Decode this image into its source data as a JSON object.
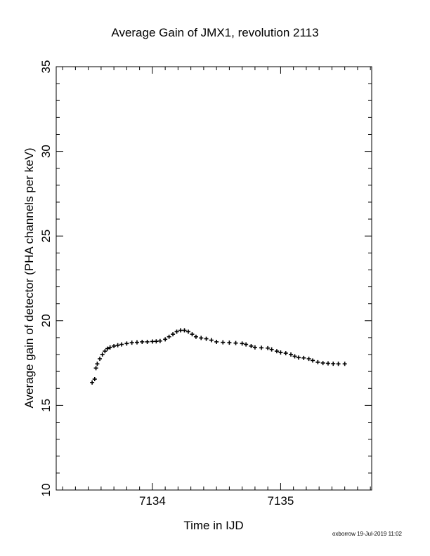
{
  "chart_data": {
    "type": "scatter",
    "title": "Average Gain of JMX1, revolution 2113",
    "xlabel": "Time in IJD",
    "ylabel": "Average gain of detector (PHA channels per keV)",
    "xlim": [
      7133.25,
      7135.71
    ],
    "ylim": [
      10,
      35
    ],
    "xticks": [
      7134,
      7135
    ],
    "yticks": [
      10,
      15,
      20,
      25,
      30,
      35
    ],
    "grid": false,
    "marker": "plus",
    "color": "#000000",
    "points": [
      [
        7133.53,
        16.35
      ],
      [
        7133.55,
        16.55
      ],
      [
        7133.56,
        17.2
      ],
      [
        7133.57,
        17.45
      ],
      [
        7133.59,
        17.75
      ],
      [
        7133.61,
        18.0
      ],
      [
        7133.63,
        18.2
      ],
      [
        7133.65,
        18.35
      ],
      [
        7133.67,
        18.42
      ],
      [
        7133.7,
        18.5
      ],
      [
        7133.73,
        18.55
      ],
      [
        7133.76,
        18.6
      ],
      [
        7133.8,
        18.65
      ],
      [
        7133.84,
        18.7
      ],
      [
        7133.88,
        18.72
      ],
      [
        7133.92,
        18.75
      ],
      [
        7133.96,
        18.75
      ],
      [
        7134.0,
        18.77
      ],
      [
        7134.03,
        18.78
      ],
      [
        7134.06,
        18.8
      ],
      [
        7134.1,
        18.9
      ],
      [
        7134.13,
        19.05
      ],
      [
        7134.16,
        19.2
      ],
      [
        7134.19,
        19.35
      ],
      [
        7134.22,
        19.43
      ],
      [
        7134.25,
        19.43
      ],
      [
        7134.28,
        19.35
      ],
      [
        7134.31,
        19.2
      ],
      [
        7134.34,
        19.05
      ],
      [
        7134.38,
        18.98
      ],
      [
        7134.42,
        18.93
      ],
      [
        7134.46,
        18.85
      ],
      [
        7134.5,
        18.75
      ],
      [
        7134.55,
        18.72
      ],
      [
        7134.6,
        18.7
      ],
      [
        7134.65,
        18.68
      ],
      [
        7134.7,
        18.65
      ],
      [
        7134.73,
        18.6
      ],
      [
        7134.77,
        18.5
      ],
      [
        7134.8,
        18.42
      ],
      [
        7134.85,
        18.4
      ],
      [
        7134.9,
        18.38
      ],
      [
        7134.93,
        18.3
      ],
      [
        7134.97,
        18.2
      ],
      [
        7135.0,
        18.12
      ],
      [
        7135.04,
        18.08
      ],
      [
        7135.08,
        18.0
      ],
      [
        7135.11,
        17.9
      ],
      [
        7135.14,
        17.82
      ],
      [
        7135.18,
        17.8
      ],
      [
        7135.22,
        17.75
      ],
      [
        7135.25,
        17.65
      ],
      [
        7135.29,
        17.55
      ],
      [
        7135.33,
        17.5
      ],
      [
        7135.37,
        17.48
      ],
      [
        7135.41,
        17.46
      ],
      [
        7135.45,
        17.45
      ],
      [
        7135.5,
        17.45
      ]
    ]
  },
  "footer_text": "oxborrow 19-Jul-2019 11:02"
}
